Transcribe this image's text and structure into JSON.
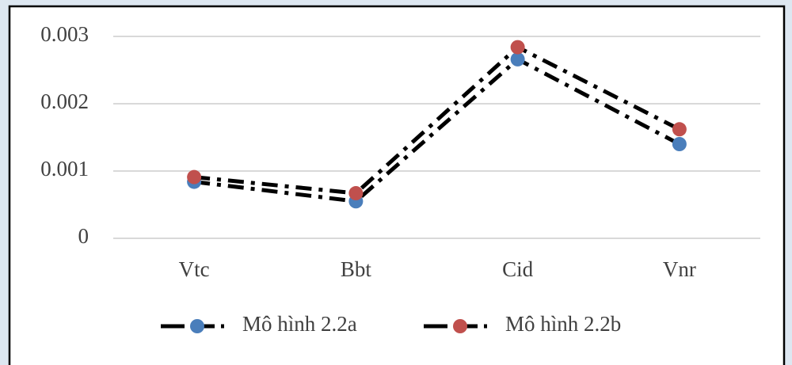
{
  "chart_data": {
    "type": "line",
    "categories": [
      "Vtc",
      "Bbt",
      "Cid",
      "Vnr"
    ],
    "series": [
      {
        "name": "Mô hình 2.2a",
        "color": "#4a7ebb",
        "values": [
          0.00084,
          0.00055,
          0.00266,
          0.0014
        ]
      },
      {
        "name": "Mô hình 2.2b",
        "color": "#c0504d",
        "values": [
          0.00091,
          0.00067,
          0.00284,
          0.00162
        ]
      }
    ],
    "line_color": "#000000",
    "ylim": [
      0,
      0.003
    ],
    "yticks": [
      0,
      0.001,
      0.002,
      0.003
    ],
    "grid": true,
    "legend": "bottom"
  }
}
